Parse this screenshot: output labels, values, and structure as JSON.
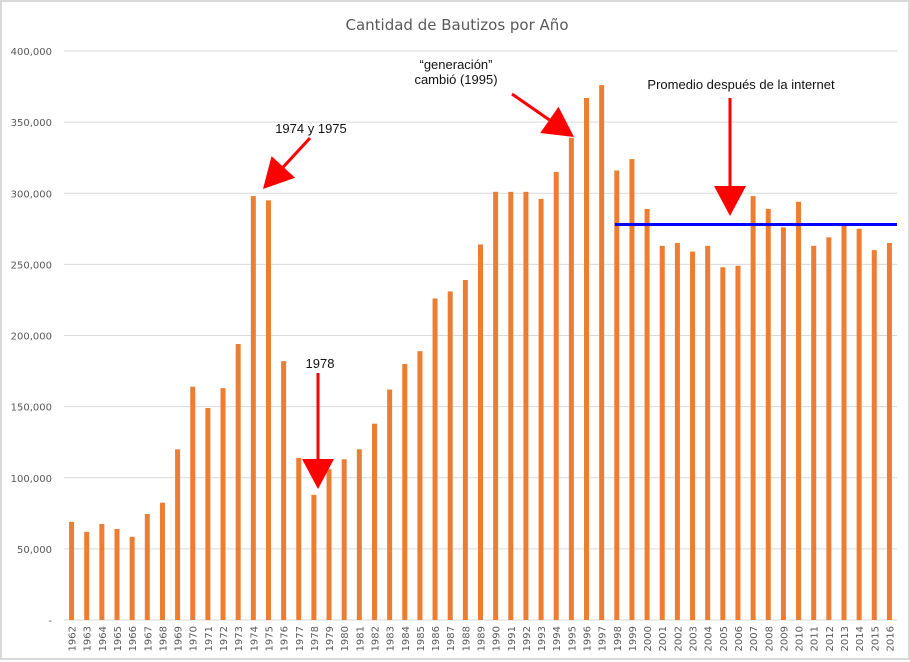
{
  "chart_data": {
    "type": "bar",
    "title": "Cantidad de Bautizos por Año",
    "xlabel": "",
    "ylabel": "",
    "ylim": [
      0,
      400000
    ],
    "yticks": [
      0,
      50000,
      100000,
      150000,
      200000,
      250000,
      300000,
      350000,
      400000
    ],
    "ytick_labels": [
      "-",
      "50,000",
      "100,000",
      "150,000",
      "200,000",
      "250,000",
      "300,000",
      "350,000",
      "400,000"
    ],
    "grid": true,
    "bar_color": "#ed7d31",
    "categories": [
      "1962",
      "1963",
      "1964",
      "1965",
      "1966",
      "1967",
      "1968",
      "1969",
      "1970",
      "1971",
      "1972",
      "1973",
      "1974",
      "1975",
      "1976",
      "1977",
      "1978",
      "1979",
      "1980",
      "1981",
      "1982",
      "1983",
      "1984",
      "1985",
      "1986",
      "1987",
      "1988",
      "1989",
      "1990",
      "1991",
      "1992",
      "1993",
      "1994",
      "1995",
      "1996",
      "1997",
      "1998",
      "1999",
      "2000",
      "2001",
      "2002",
      "2003",
      "2004",
      "2005",
      "2006",
      "2007",
      "2008",
      "2009",
      "2010",
      "2011",
      "2012",
      "2013",
      "2014",
      "2015",
      "2016"
    ],
    "values": [
      69000,
      62000,
      67500,
      64000,
      58500,
      74500,
      82500,
      120000,
      164000,
      149000,
      163000,
      194000,
      298000,
      295000,
      182000,
      114000,
      88000,
      106000,
      113000,
      120000,
      138000,
      162000,
      180000,
      189000,
      226000,
      231000,
      239000,
      264000,
      301000,
      301000,
      301000,
      296000,
      315000,
      339000,
      367000,
      376000,
      316000,
      324000,
      289000,
      263000,
      265000,
      259000,
      263000,
      248000,
      249000,
      298000,
      289000,
      276000,
      294000,
      263000,
      269000,
      278000,
      275000,
      260000,
      265000
    ],
    "average_line": {
      "label": "Promedio después de la internet",
      "value": 278000,
      "from": "1998",
      "to": "2016",
      "color": "#0000ff"
    },
    "annotations": [
      {
        "text": "1974 y 1975",
        "target": "1974",
        "color": "#ff0000"
      },
      {
        "text": "1978",
        "target": "1978",
        "color": "#ff0000"
      },
      {
        "text_lines": [
          "“generación”",
          "cambió (1995)"
        ],
        "target": "1995",
        "color": "#ff0000"
      },
      {
        "text": "Promedio después de la internet",
        "target": "average_line",
        "color": "#ff0000"
      }
    ]
  }
}
